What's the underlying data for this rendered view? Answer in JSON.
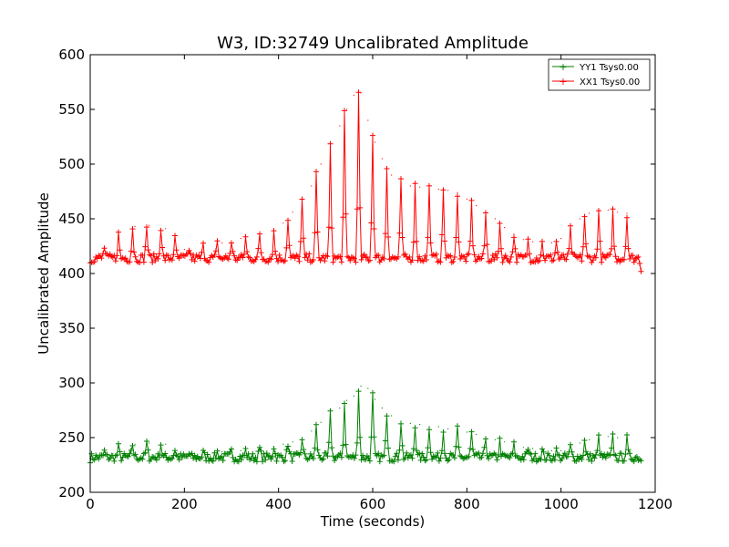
{
  "chart_data": {
    "type": "line",
    "title": "W3, ID:32749 Uncalibrated Amplitude",
    "xlabel": "Time (seconds)",
    "ylabel": "Uncalibrated Amplitude",
    "xlim": [
      0,
      1200
    ],
    "ylim": [
      200,
      600
    ],
    "xticks": [
      0,
      200,
      400,
      600,
      800,
      1000,
      1200
    ],
    "yticks": [
      200,
      250,
      300,
      350,
      400,
      450,
      500,
      550,
      600
    ],
    "grid": false,
    "legend_position": "top-right",
    "marker": "+",
    "series": [
      {
        "name": "YY1 Tsys0.00",
        "color": "#008000",
        "baseline": 232,
        "x": [
          0,
          30,
          60,
          95,
          125,
          160,
          200,
          240,
          280,
          320,
          360,
          390,
          410,
          430,
          450,
          470,
          490,
          510,
          530,
          545,
          560,
          575,
          590,
          605,
          620,
          640,
          660,
          680,
          700,
          720,
          740,
          760,
          780,
          800,
          820,
          840,
          860,
          880,
          900,
          920,
          940,
          960,
          980,
          1000,
          1020,
          1040,
          1060,
          1080,
          1100,
          1120,
          1140,
          1160,
          1170
        ],
        "y": [
          231,
          237,
          241,
          244,
          245,
          244,
          235,
          236,
          237,
          238,
          240,
          242,
          244,
          246,
          250,
          256,
          264,
          271,
          277,
          284,
          288,
          297,
          295,
          285,
          277,
          270,
          265,
          263,
          262,
          260,
          260,
          258,
          257,
          255,
          253,
          250,
          248,
          246,
          243,
          241,
          240,
          238,
          238,
          238,
          242,
          245,
          248,
          250,
          251,
          250,
          249,
          232,
          229
        ]
      },
      {
        "name": "XX1 Tsys0.00",
        "color": "#ff0000",
        "baseline": 414,
        "x": [
          0,
          30,
          60,
          95,
          125,
          160,
          200,
          240,
          280,
          320,
          360,
          390,
          410,
          430,
          450,
          470,
          490,
          510,
          530,
          545,
          560,
          575,
          590,
          605,
          620,
          640,
          660,
          680,
          700,
          720,
          740,
          760,
          780,
          800,
          820,
          840,
          860,
          880,
          900,
          920,
          940,
          960,
          980,
          1000,
          1020,
          1040,
          1060,
          1080,
          1100,
          1120,
          1140,
          1160,
          1170
        ],
        "y": [
          412,
          424,
          436,
          443,
          444,
          441,
          422,
          425,
          428,
          432,
          435,
          438,
          446,
          456,
          466,
          480,
          500,
          515,
          535,
          550,
          563,
          565,
          540,
          520,
          505,
          490,
          483,
          480,
          479,
          478,
          477,
          476,
          474,
          468,
          462,
          455,
          450,
          442,
          436,
          431,
          429,
          428,
          428,
          432,
          440,
          450,
          455,
          457,
          458,
          456,
          455,
          412,
          405
        ]
      }
    ]
  }
}
